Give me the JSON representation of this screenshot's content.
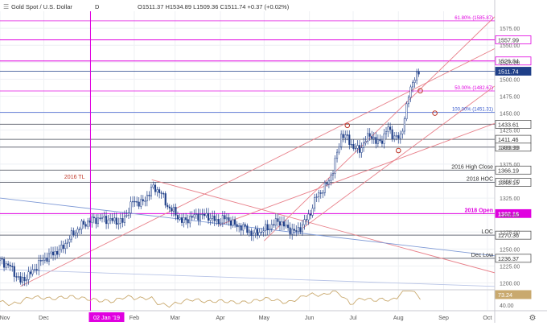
{
  "header": {
    "symbol": "Gold Spot / U.S. Dollar",
    "interval": "D",
    "ohlc_text": "O1511.37  H1534.89  L1509.36  C1511.74  +0.37 (+0.02%)"
  },
  "colors": {
    "up": "#1f3f88",
    "down": "#1f3f88",
    "magenta": "#e000e0",
    "trend_red": "#e8808a",
    "dark_red": "#c0392b",
    "blue_line": "#7f9ad6",
    "grid": "#eef0f4",
    "rsi": "#c9a96e",
    "axis_text": "#333333"
  },
  "chart_data": {
    "type": "candlestick",
    "price_range": [
      1190,
      1600
    ],
    "price_ticks": [
      1200,
      1225,
      1250,
      1275,
      1300,
      1325,
      1350,
      1375,
      1400,
      1425,
      1450,
      1475,
      1500,
      1525,
      1550,
      1575
    ],
    "x_range_days": [
      0,
      339
    ],
    "x_ticks": [
      {
        "label": "Nov",
        "day": 0
      },
      {
        "label": "Dec",
        "day": 30
      },
      {
        "label": "02 Jan '19",
        "day": 62
      },
      {
        "label": "Feb",
        "day": 92
      },
      {
        "label": "Mar",
        "day": 120
      },
      {
        "label": "Apr",
        "day": 151
      },
      {
        "label": "May",
        "day": 181
      },
      {
        "label": "Jun",
        "day": 212
      },
      {
        "label": "Jul",
        "day": 242
      },
      {
        "label": "Aug",
        "day": 273
      },
      {
        "label": "Sep",
        "day": 304
      },
      {
        "label": "Oct",
        "day": 334
      }
    ],
    "price_anchors": [
      [
        0,
        1233
      ],
      [
        7,
        1224
      ],
      [
        14,
        1202
      ],
      [
        21,
        1214
      ],
      [
        28,
        1232
      ],
      [
        35,
        1242
      ],
      [
        42,
        1250
      ],
      [
        49,
        1270
      ],
      [
        56,
        1285
      ],
      [
        63,
        1293
      ],
      [
        70,
        1295
      ],
      [
        77,
        1292
      ],
      [
        84,
        1290
      ],
      [
        91,
        1320
      ],
      [
        98,
        1318
      ],
      [
        104,
        1340
      ],
      [
        110,
        1335
      ],
      [
        114,
        1315
      ],
      [
        119,
        1305
      ],
      [
        125,
        1290
      ],
      [
        131,
        1297
      ],
      [
        137,
        1300
      ],
      [
        143,
        1298
      ],
      [
        149,
        1290
      ],
      [
        155,
        1296
      ],
      [
        161,
        1285
      ],
      [
        167,
        1282
      ],
      [
        173,
        1272
      ],
      [
        179,
        1276
      ],
      [
        185,
        1283
      ],
      [
        191,
        1292
      ],
      [
        197,
        1280
      ],
      [
        203,
        1275
      ],
      [
        207,
        1285
      ],
      [
        212,
        1300
      ],
      [
        217,
        1328
      ],
      [
        221,
        1337
      ],
      [
        224,
        1345
      ],
      [
        228,
        1365
      ],
      [
        231,
        1390
      ],
      [
        234,
        1420
      ],
      [
        238,
        1413
      ],
      [
        242,
        1400
      ],
      [
        246,
        1395
      ],
      [
        250,
        1408
      ],
      [
        254,
        1420
      ],
      [
        258,
        1405
      ],
      [
        262,
        1412
      ],
      [
        266,
        1428
      ],
      [
        270,
        1415
      ],
      [
        274,
        1413
      ],
      [
        277,
        1440
      ],
      [
        280,
        1475
      ],
      [
        283,
        1500
      ],
      [
        286,
        1505
      ],
      [
        288,
        1511.74
      ]
    ],
    "rsi": {
      "label": "73.24",
      "ticks": [
        40,
        80
      ],
      "range": [
        20,
        90
      ]
    },
    "levels": [
      {
        "price": 1585.87,
        "label": "61.80% (1585.87)",
        "style": "fib",
        "color": "#e000e0"
      },
      {
        "price": 1557.99,
        "label": "1557.99",
        "style": "box",
        "color": "#e000e0"
      },
      {
        "price": 1526.84,
        "label": "1526.84",
        "style": "box",
        "color": "#e000e0"
      },
      {
        "price": 1511.74,
        "label": "1511.74",
        "style": "price",
        "color": "#1f3f88"
      },
      {
        "price": 1482.67,
        "label": "50.00% (1482.67)",
        "style": "fib",
        "color": "#e000e0"
      },
      {
        "price": 1451.31,
        "label": "100.00% (1451.31)",
        "style": "fib",
        "color": "#3355cc"
      },
      {
        "price": 1433.61,
        "label": "1433.61",
        "style": "box",
        "color": "#555555"
      },
      {
        "price": 1411.46,
        "label": "1411.46",
        "style": "box",
        "color": "#555555"
      },
      {
        "price": 1399.99,
        "label": "1399.99",
        "style": "box",
        "color": "#555555"
      },
      {
        "price": 1366.19,
        "label": "1366.19",
        "style": "box",
        "color": "#555555"
      },
      {
        "price": 1348.15,
        "label": "1348.15",
        "style": "box",
        "color": "#555555"
      },
      {
        "price": 1302.18,
        "label": "1302.18",
        "style": "box",
        "color": "#e000e0"
      },
      {
        "price": 1270.36,
        "label": "1270.36",
        "style": "box",
        "color": "#555555"
      },
      {
        "price": 1236.37,
        "label": "1236.37",
        "style": "box",
        "color": "#555555"
      }
    ],
    "annotations": [
      {
        "text": "2016 High Close",
        "price": 1366.19,
        "color": "#333333"
      },
      {
        "text": "2018 HOC",
        "price": 1348.15,
        "color": "#333333"
      },
      {
        "text": "2018 Open",
        "price": 1302.18,
        "color": "#e000e0"
      },
      {
        "text": "LOC",
        "price": 1270.36,
        "color": "#333333"
      },
      {
        "text": "Dec Low",
        "price": 1236.37,
        "color": "#333333"
      },
      {
        "text": "2016 TL",
        "price": 1351,
        "day": 22,
        "color": "#c0392b"
      }
    ],
    "time_marker": {
      "day": 62,
      "label": "02 Jan '19"
    },
    "trendlines": [
      {
        "from": [
          14,
          1195
        ],
        "to": [
          339,
          1545
        ],
        "color": "#e8808a"
      },
      {
        "from": [
          181,
          1262
        ],
        "to": [
          339,
          1592
        ],
        "color": "#e8808a"
      },
      {
        "from": [
          207,
          1280
        ],
        "to": [
          339,
          1490
        ],
        "color": "#e8808a"
      },
      {
        "from": [
          150,
          1285
        ],
        "to": [
          339,
          1435
        ],
        "color": "#e8808a"
      },
      {
        "from": [
          104,
          1352
        ],
        "to": [
          339,
          1215
        ],
        "color": "#e8808a"
      },
      {
        "from": [
          0,
          1325
        ],
        "to": [
          339,
          1240
        ],
        "color": "#7f9ad6"
      },
      {
        "from": [
          0,
          1220
        ],
        "to": [
          339,
          1195
        ],
        "color": "#b8c4e6"
      }
    ],
    "pivot_circles": [
      [
        238,
        1432
      ],
      [
        273,
        1395
      ],
      [
        298,
        1450
      ],
      [
        288,
        1483
      ]
    ]
  }
}
